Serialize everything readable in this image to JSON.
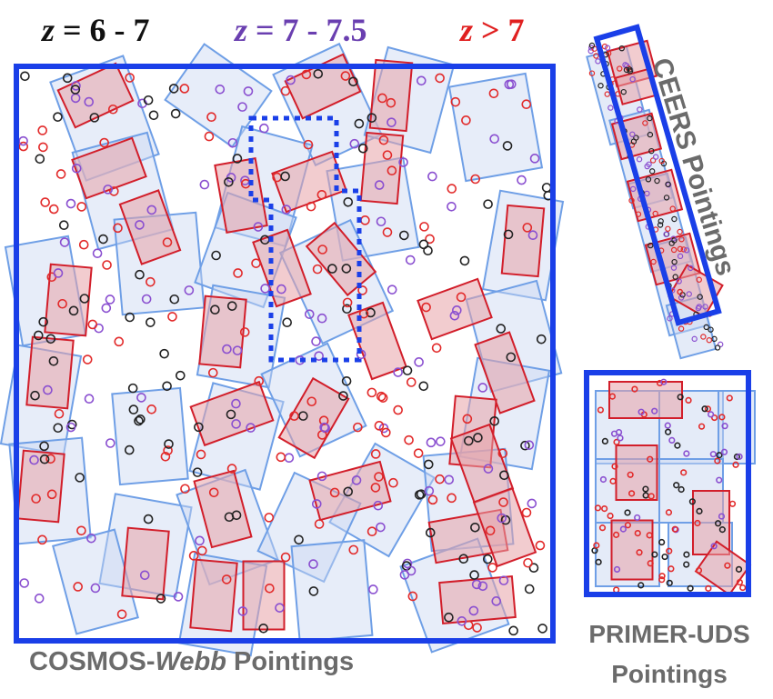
{
  "legend": {
    "z_black": {
      "symbol": "z",
      "rest": " = 6 - 7",
      "color": "#111111"
    },
    "z_purple": {
      "symbol": "z",
      "rest": " = 7 - 7.5",
      "color": "#6a3fb0"
    },
    "z_red": {
      "symbol": "z",
      "rest": " > 7",
      "color": "#e02020"
    }
  },
  "labels": {
    "cosmos_prefix": "COSMOS-",
    "cosmos_italic": "Webb",
    "cosmos_suffix": " Pointings",
    "ceers": "CEERS Pointings",
    "primer_line1": "PRIMER-UDS",
    "primer_line2": "Pointings"
  },
  "colors": {
    "frame": "#1a3fe8",
    "pointing_fill": "#c9d7f1",
    "pointing_stroke": "#6f9fe6",
    "red_fill": "#e8a3a8",
    "red_stroke": "#d21e2a",
    "galaxy_black": "#222222",
    "galaxy_purple": "#8a4fd0",
    "galaxy_red": "#e22a2a"
  },
  "icons": [
    "square-frame",
    "dotted-frame",
    "rotated-rectangle",
    "open-circle"
  ]
}
